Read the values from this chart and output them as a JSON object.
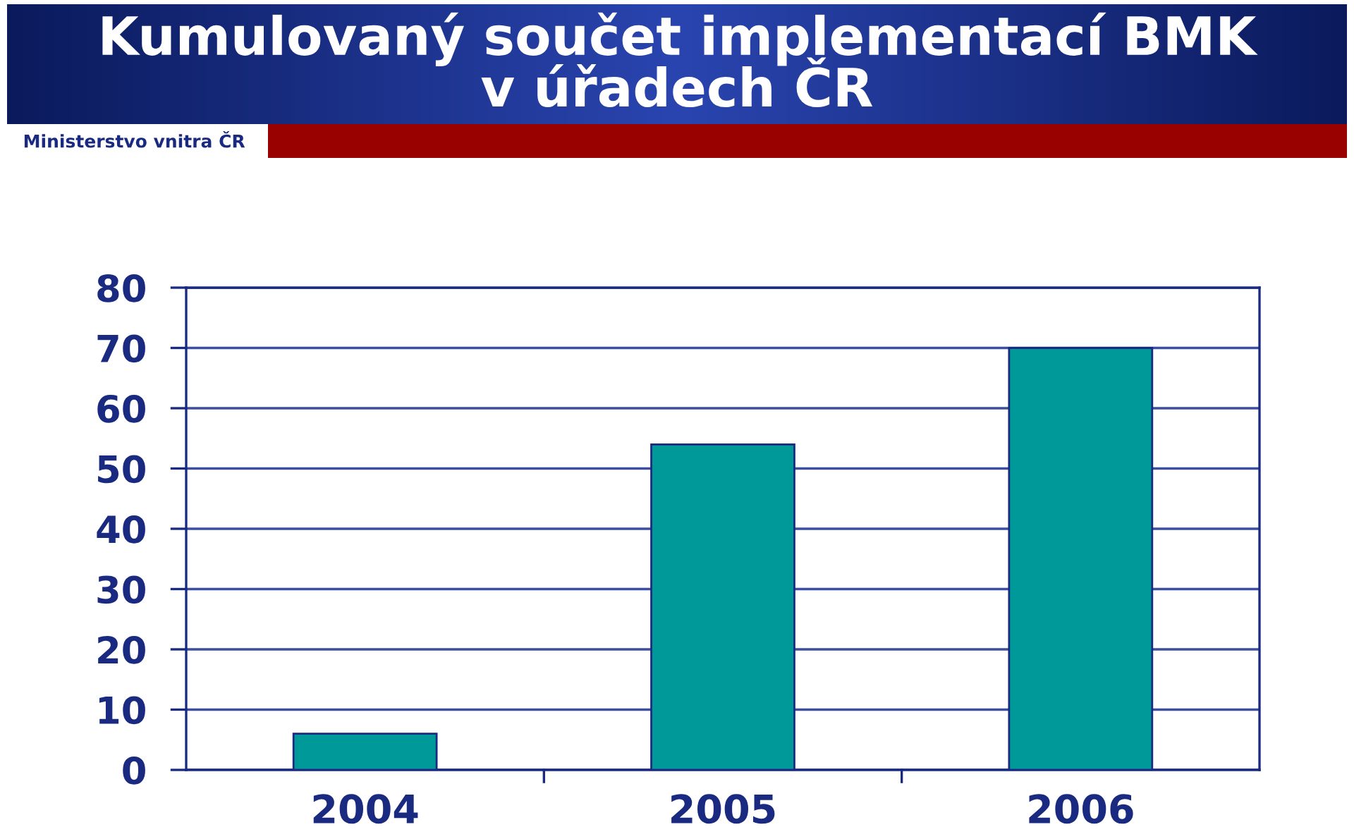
{
  "chart_data": {
    "type": "bar",
    "title": "Kumulovaný součet implementací BMK\nv úřadech ČR",
    "annotations": [
      "Ministerstvo vnitra ČR"
    ],
    "categories": [
      "2004",
      "2005",
      "2006"
    ],
    "values": [
      6,
      54,
      70
    ],
    "color": "#009999",
    "ylim": [
      0,
      80
    ],
    "yticks": [
      0,
      10,
      20,
      30,
      40,
      50,
      60,
      70,
      80
    ],
    "grid": "y"
  }
}
